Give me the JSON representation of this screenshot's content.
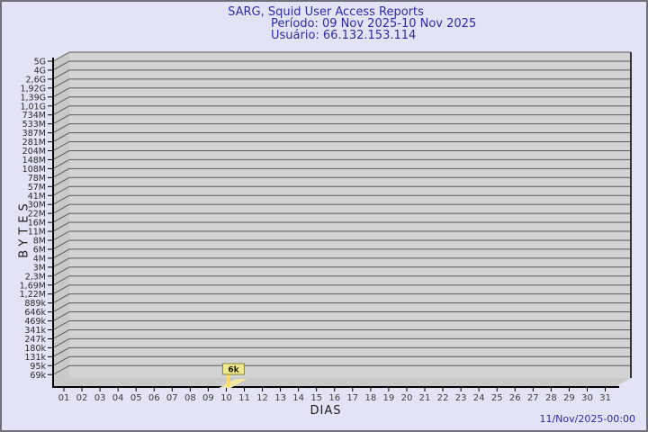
{
  "title": {
    "line1": "SARG, Squid User Access Reports",
    "line2": "Período: 09 Nov 2025-10 Nov 2025",
    "line3": "Usuário: 66.132.153.114"
  },
  "footer": {
    "timestamp": "11/Nov/2025-00:00"
  },
  "colors": {
    "page_bg": "#e3e3f6",
    "frame_border": "#71717b",
    "title_text": "#2d2da6",
    "plot_wall": "#d3d3d3",
    "plot_side": "#c9c9c9",
    "grid_line": "#595959",
    "axis_line": "#000000",
    "bar_top": "#f2e8a6",
    "bar_stem": "#ffd966",
    "ann_box_fill": "#efe88f",
    "ann_box_border": "#8a8a33"
  },
  "chart_data": {
    "type": "bar",
    "title": "SARG, Squid User Access Reports",
    "subtitle": "Período: 09 Nov 2025-10 Nov 2025",
    "user": "66.132.153.114",
    "xlabel": "DIAS",
    "ylabel": "BYTES",
    "y_scale": "log",
    "ylim": [
      "69k",
      "5G"
    ],
    "grid": true,
    "legend_position": "none",
    "style": "3d-bar",
    "y_ticks": [
      "5G",
      "4G",
      "2,6G",
      "1,92G",
      "1,39G",
      "1,01G",
      "734M",
      "533M",
      "387M",
      "281M",
      "204M",
      "148M",
      "108M",
      "78M",
      "57M",
      "41M",
      "30M",
      "22M",
      "16M",
      "11M",
      "8M",
      "6M",
      "4M",
      "3M",
      "2,3M",
      "1,69M",
      "1,22M",
      "889k",
      "646k",
      "469k",
      "341k",
      "247k",
      "180k",
      "131k",
      "95k",
      "69k"
    ],
    "x_ticks": [
      "01",
      "02",
      "03",
      "04",
      "05",
      "06",
      "07",
      "08",
      "09",
      "10",
      "11",
      "12",
      "13",
      "14",
      "15",
      "16",
      "17",
      "18",
      "19",
      "20",
      "21",
      "22",
      "23",
      "24",
      "25",
      "26",
      "27",
      "28",
      "29",
      "30",
      "31"
    ],
    "points": [
      {
        "day": "10",
        "value_label": "6k"
      }
    ]
  }
}
